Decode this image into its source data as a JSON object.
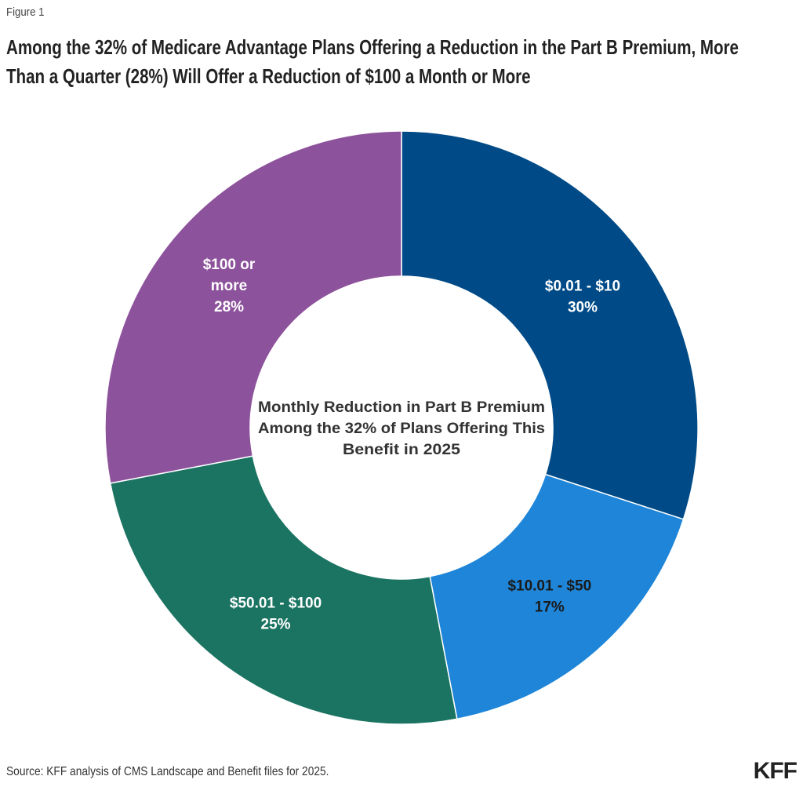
{
  "figure_label": "Figure 1",
  "source": "Source: KFF analysis of CMS Landscape and Benefit files for 2025.",
  "logo": "KFF",
  "chart_data": {
    "type": "pie",
    "donut": true,
    "title": "Among the 32% of Medicare Advantage Plans Offering a Reduction in the Part B Premium, More Than a Quarter (28%) Will Offer a Reduction of $100 a Month or More",
    "center_label": [
      "Monthly Reduction in Part B Premium",
      "Among the 32% of Plans Offering This",
      "Benefit in 2025"
    ],
    "categories": [
      "$0.01 - $10",
      "$10.01 - $50",
      "$50.01 - $100",
      "$100 or more"
    ],
    "values": [
      30,
      17,
      25,
      28
    ],
    "data_labels": [
      [
        "$0.01 - $10",
        "30%"
      ],
      [
        "$10.01 - $50",
        "17%"
      ],
      [
        "$50.01 - $100",
        "25%"
      ],
      [
        "$100 or",
        "more",
        "28%"
      ]
    ],
    "colors": [
      "#004b87",
      "#1f85d8",
      "#1b7462",
      "#8d529c"
    ],
    "label_colors": [
      "#ffffff",
      "#1a1a1a",
      "#ffffff",
      "#ffffff"
    ],
    "start_angle": "top",
    "direction": "clockwise"
  }
}
